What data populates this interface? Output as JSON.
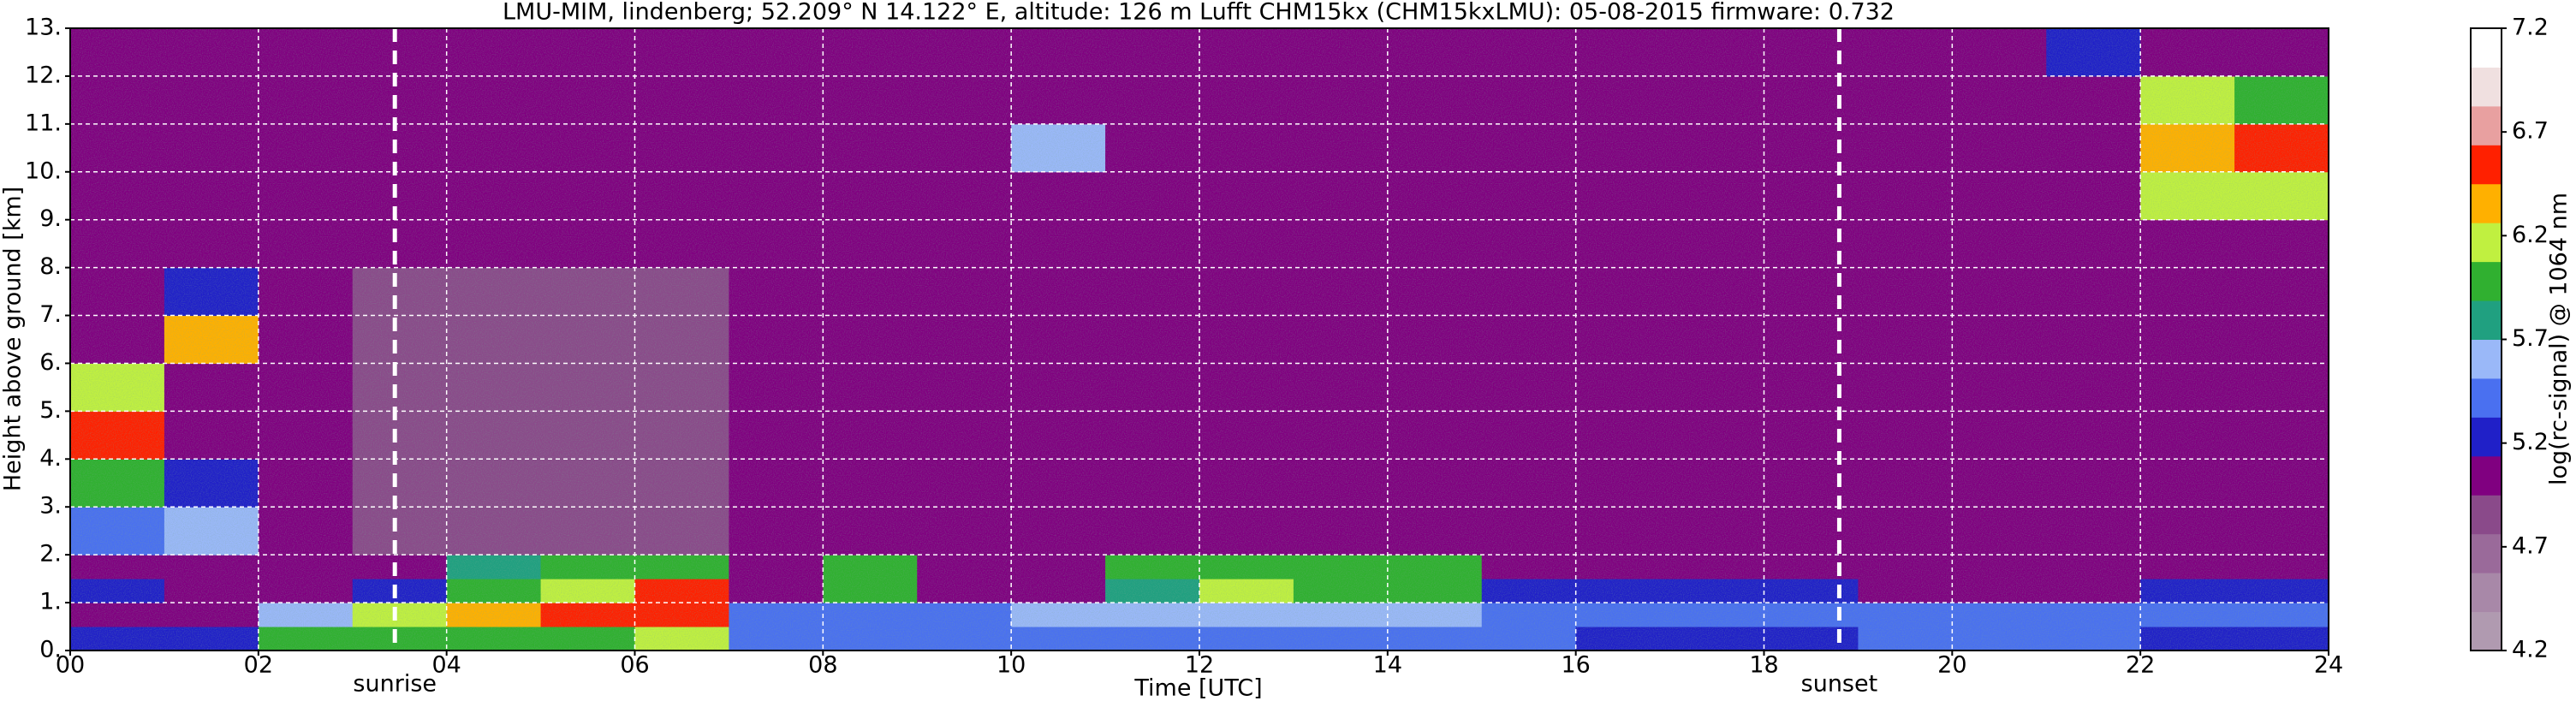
{
  "chart_data": {
    "type": "heatmap",
    "title": "LMU-MIM, lindenberg; 52.209° N 14.122° E, altitude: 126 m    Lufft CHM15kx (CHM15kxLMU): 05-08-2015    firmware: 0.732",
    "xlabel": "Time [UTC]",
    "ylabel": "Height above ground [km]",
    "colorbar_label": "log(rc-signal) @ 1064 nm",
    "xlim": [
      0,
      24
    ],
    "ylim": [
      0,
      13
    ],
    "xticks": [
      {
        "value": 0,
        "label": "00"
      },
      {
        "value": 2,
        "label": "02"
      },
      {
        "value": 4,
        "label": "04"
      },
      {
        "value": 6,
        "label": "06"
      },
      {
        "value": 8,
        "label": "08"
      },
      10,
      12,
      14,
      16,
      18,
      20,
      22,
      24
    ],
    "yticks": [
      {
        "value": 0,
        "label": "0."
      },
      {
        "value": 1,
        "label": "1."
      },
      {
        "value": 2,
        "label": "2."
      },
      {
        "value": 3,
        "label": "3."
      },
      {
        "value": 4,
        "label": "4."
      },
      {
        "value": 5,
        "label": "5."
      },
      {
        "value": 6,
        "label": "6."
      },
      {
        "value": 7,
        "label": "7."
      },
      {
        "value": 8,
        "label": "8."
      },
      {
        "value": 9,
        "label": "9."
      },
      {
        "value": 10,
        "label": "10."
      },
      {
        "value": 11,
        "label": "11."
      },
      {
        "value": 12,
        "label": "12."
      },
      {
        "value": 13,
        "label": "13."
      }
    ],
    "grid": true,
    "zlim": [
      4.2,
      7.2
    ],
    "zticks": [
      4.2,
      4.7,
      5.2,
      5.7,
      6.2,
      6.7,
      7.2
    ],
    "colorscale": [
      "#b09ab0",
      "#a888a8",
      "#9a6a9a",
      "#8a4a8a",
      "#800080",
      "#2020c8",
      "#4a70f0",
      "#9ab8f8",
      "#20a080",
      "#30b030",
      "#c0f040",
      "#ffb000",
      "#ff2000",
      "#e8a0a0",
      "#f0e0e0",
      "#ffffff"
    ],
    "annotations": [
      {
        "text": "sunrise",
        "x": 3.45
      },
      {
        "text": "sunset",
        "x": 18.8
      }
    ],
    "x_bins": [
      0,
      1,
      2,
      3,
      4,
      5,
      6,
      7,
      8,
      9,
      10,
      11,
      12,
      13,
      14,
      15,
      16,
      17,
      18,
      19,
      20,
      21,
      22,
      23,
      24
    ],
    "y_bins": [
      0,
      0.5,
      1,
      1.5,
      2,
      3,
      4,
      5,
      6,
      7,
      8,
      9,
      10,
      11,
      12,
      13
    ],
    "z": [
      [
        5.3,
        5.3,
        6.0,
        6.0,
        6.0,
        6.1,
        6.2,
        5.5,
        5.5,
        5.5,
        5.5,
        5.5,
        5.4,
        5.4,
        5.4,
        5.4,
        5.3,
        5.3,
        5.3,
        5.4,
        5.4,
        5.4,
        5.3,
        5.3
      ],
      [
        5.0,
        5.0,
        5.6,
        6.3,
        6.4,
        6.5,
        6.6,
        5.4,
        5.4,
        5.5,
        5.6,
        5.6,
        5.6,
        5.6,
        5.6,
        5.5,
        5.5,
        5.5,
        5.5,
        5.4,
        5.4,
        5.4,
        5.5,
        5.5
      ],
      [
        5.2,
        5.1,
        5.1,
        5.2,
        6.0,
        6.3,
        6.5,
        5.1,
        5.9,
        5.0,
        5.0,
        5.8,
        6.2,
        6.0,
        6.1,
        5.3,
        5.3,
        5.2,
        5.2,
        5.1,
        5.1,
        5.1,
        5.3,
        5.3
      ],
      [
        5.1,
        5.0,
        4.9,
        4.9,
        5.8,
        6.0,
        6.1,
        4.9,
        6.1,
        4.9,
        4.9,
        5.9,
        6.1,
        6.0,
        6.0,
        5.0,
        4.9,
        4.9,
        4.9,
        5.0,
        5.0,
        5.0,
        5.0,
        5.0
      ],
      [
        5.4,
        5.6,
        4.9,
        4.8,
        4.8,
        4.8,
        4.8,
        4.9,
        5.0,
        4.9,
        4.9,
        4.9,
        4.9,
        4.9,
        4.9,
        4.9,
        4.9,
        4.9,
        4.9,
        4.9,
        4.9,
        4.9,
        4.9,
        4.9
      ],
      [
        6.0,
        5.2,
        4.9,
        4.8,
        4.8,
        4.8,
        4.8,
        4.9,
        4.9,
        4.9,
        4.9,
        4.9,
        4.9,
        4.9,
        4.9,
        4.9,
        4.9,
        4.9,
        4.9,
        4.9,
        4.9,
        4.9,
        4.9,
        4.9
      ],
      [
        6.5,
        4.9,
        4.9,
        4.8,
        4.8,
        4.8,
        4.8,
        4.9,
        4.9,
        4.9,
        4.9,
        4.9,
        4.9,
        4.9,
        4.9,
        4.9,
        4.9,
        4.9,
        4.9,
        4.9,
        4.9,
        4.9,
        4.9,
        4.9
      ],
      [
        6.3,
        4.9,
        4.9,
        4.8,
        4.8,
        4.8,
        4.8,
        4.9,
        4.9,
        4.9,
        4.9,
        4.9,
        4.9,
        4.9,
        4.9,
        4.9,
        4.9,
        4.9,
        4.9,
        4.9,
        4.9,
        4.9,
        4.9,
        4.9
      ],
      [
        5.0,
        6.4,
        4.9,
        4.8,
        4.8,
        4.8,
        4.8,
        4.9,
        4.9,
        4.9,
        4.9,
        4.9,
        4.9,
        4.9,
        4.9,
        4.9,
        4.9,
        4.9,
        4.9,
        4.9,
        4.9,
        4.9,
        4.9,
        4.9
      ],
      [
        4.9,
        5.3,
        4.9,
        4.8,
        4.8,
        4.8,
        4.8,
        4.9,
        4.9,
        4.9,
        4.9,
        4.9,
        4.9,
        4.9,
        4.9,
        4.9,
        4.9,
        4.9,
        4.9,
        4.9,
        4.9,
        4.9,
        4.9,
        4.9
      ],
      [
        4.9,
        4.9,
        4.9,
        4.9,
        4.9,
        4.9,
        4.9,
        4.9,
        4.9,
        4.9,
        4.9,
        4.9,
        4.9,
        4.9,
        4.9,
        4.9,
        4.9,
        4.9,
        4.9,
        4.9,
        4.9,
        4.9,
        4.9,
        4.9
      ],
      [
        4.9,
        4.9,
        4.9,
        4.9,
        4.9,
        4.9,
        4.9,
        4.9,
        4.9,
        4.9,
        4.9,
        4.9,
        4.9,
        4.9,
        4.9,
        4.9,
        4.9,
        4.9,
        4.9,
        4.9,
        4.9,
        4.9,
        6.3,
        6.2
      ],
      [
        4.9,
        4.9,
        4.9,
        4.9,
        4.9,
        4.9,
        4.9,
        4.9,
        4.9,
        4.9,
        5.6,
        4.9,
        4.9,
        4.9,
        4.9,
        4.9,
        4.9,
        4.9,
        4.9,
        4.9,
        4.9,
        4.9,
        6.4,
        6.5
      ],
      [
        4.9,
        4.9,
        4.9,
        4.9,
        4.9,
        4.9,
        4.9,
        4.9,
        4.9,
        4.9,
        4.9,
        4.9,
        4.9,
        4.9,
        4.9,
        4.9,
        4.9,
        4.9,
        4.9,
        4.9,
        4.9,
        4.9,
        6.2,
        6.0
      ],
      [
        4.9,
        4.9,
        4.9,
        4.9,
        4.9,
        4.9,
        4.9,
        4.9,
        4.9,
        4.9,
        4.9,
        4.9,
        4.9,
        4.9,
        4.9,
        4.9,
        4.9,
        4.9,
        4.9,
        4.9,
        4.9,
        5.2,
        4.9,
        4.9
      ]
    ]
  }
}
